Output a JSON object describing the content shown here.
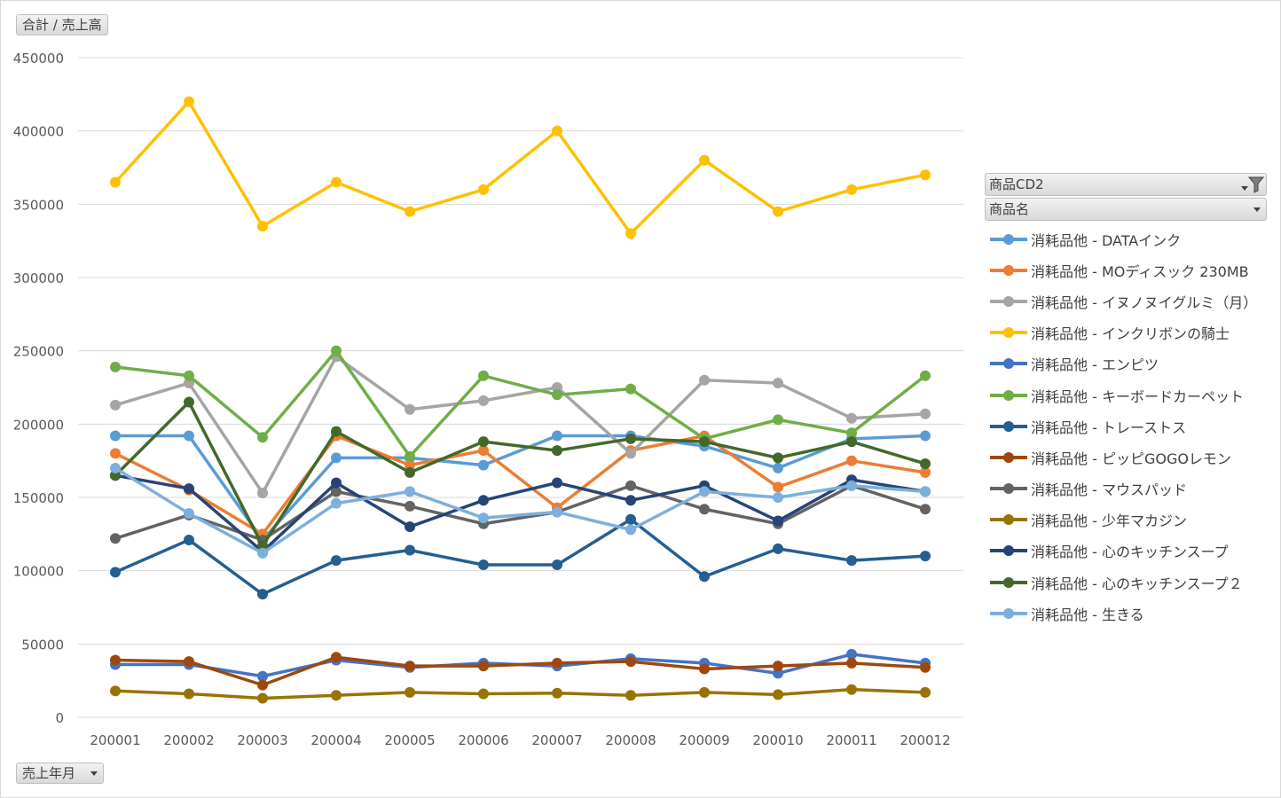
{
  "buttons": {
    "values_field": "合計 / 売上高",
    "axis_field": "売上年月"
  },
  "legend_fields": {
    "field1": "商品CD2",
    "field2": "商品名"
  },
  "chart_data": {
    "type": "line",
    "title": "",
    "xlabel": "",
    "ylabel": "",
    "ylim": [
      0,
      450000
    ],
    "yticks": [
      "0",
      "50000",
      "100000",
      "150000",
      "200000",
      "250000",
      "300000",
      "350000",
      "400000",
      "450000"
    ],
    "grid": true,
    "legend_position": "right",
    "categories": [
      "200001",
      "200002",
      "200003",
      "200004",
      "200005",
      "200006",
      "200007",
      "200008",
      "200009",
      "200010",
      "200011",
      "200012"
    ],
    "series": [
      {
        "name": "消耗品他 - DATAインク",
        "color": "#5b9bd5",
        "values": [
          192000,
          192000,
          121000,
          177000,
          177000,
          172000,
          192000,
          192000,
          185000,
          170000,
          190000,
          192000
        ]
      },
      {
        "name": "消耗品他 - MOディスック 230MB",
        "color": "#ed7d31",
        "values": [
          180000,
          155000,
          125000,
          192000,
          172000,
          182000,
          143000,
          182000,
          192000,
          157000,
          175000,
          167000
        ]
      },
      {
        "name": "消耗品他 - イヌノヌイグルミ（月）",
        "color": "#a5a5a5",
        "values": [
          213000,
          228000,
          153000,
          246000,
          210000,
          216000,
          225000,
          180000,
          230000,
          228000,
          204000,
          207000
        ]
      },
      {
        "name": "消耗品他 - インクリボンの騎士",
        "color": "#ffc000",
        "values": [
          365000,
          420000,
          335000,
          365000,
          345000,
          360000,
          400000,
          330000,
          380000,
          345000,
          360000,
          370000
        ]
      },
      {
        "name": "消耗品他 - エンピツ",
        "color": "#4472c4",
        "values": [
          36000,
          36000,
          28000,
          39000,
          34000,
          37000,
          35000,
          40000,
          37000,
          30000,
          43000,
          37000
        ]
      },
      {
        "name": "消耗品他 - キーボードカーペット",
        "color": "#70ad47",
        "values": [
          239000,
          233000,
          191000,
          250000,
          178000,
          233000,
          220000,
          224000,
          190000,
          203000,
          194000,
          233000
        ]
      },
      {
        "name": "消耗品他 - トレーストス",
        "color": "#255e91",
        "values": [
          99000,
          121000,
          84000,
          107000,
          114000,
          104000,
          104000,
          135000,
          96000,
          115000,
          107000,
          110000
        ]
      },
      {
        "name": "消耗品他 - ピッピGOGOレモン",
        "color": "#9e480e",
        "values": [
          39000,
          38000,
          22000,
          41000,
          35000,
          35000,
          37000,
          38000,
          33000,
          35000,
          37000,
          34000
        ]
      },
      {
        "name": "消耗品他 - マウスパッド",
        "color": "#636363",
        "values": [
          122000,
          138000,
          121000,
          154000,
          144000,
          132000,
          140000,
          158000,
          142000,
          132000,
          158000,
          142000
        ]
      },
      {
        "name": "消耗品他 - 少年マカジン",
        "color": "#997300",
        "values": [
          18000,
          16000,
          13000,
          15000,
          17000,
          16000,
          16500,
          15000,
          17000,
          15500,
          19000,
          17000
        ]
      },
      {
        "name": "消耗品他 - 心のキッチンスープ",
        "color": "#264478",
        "values": [
          165000,
          156000,
          113000,
          160000,
          130000,
          148000,
          160000,
          148000,
          158000,
          134000,
          162000,
          154000
        ]
      },
      {
        "name": "消耗品他 - 心のキッチンスープ２",
        "color": "#43682b",
        "values": [
          165000,
          215000,
          117000,
          195000,
          167000,
          188000,
          182000,
          190000,
          188000,
          177000,
          188000,
          173000
        ]
      },
      {
        "name": "消耗品他 - 生きる",
        "color": "#7cafdd",
        "values": [
          170000,
          139000,
          112000,
          146000,
          154000,
          136000,
          140000,
          128000,
          154000,
          150000,
          158000,
          154000
        ]
      }
    ]
  }
}
